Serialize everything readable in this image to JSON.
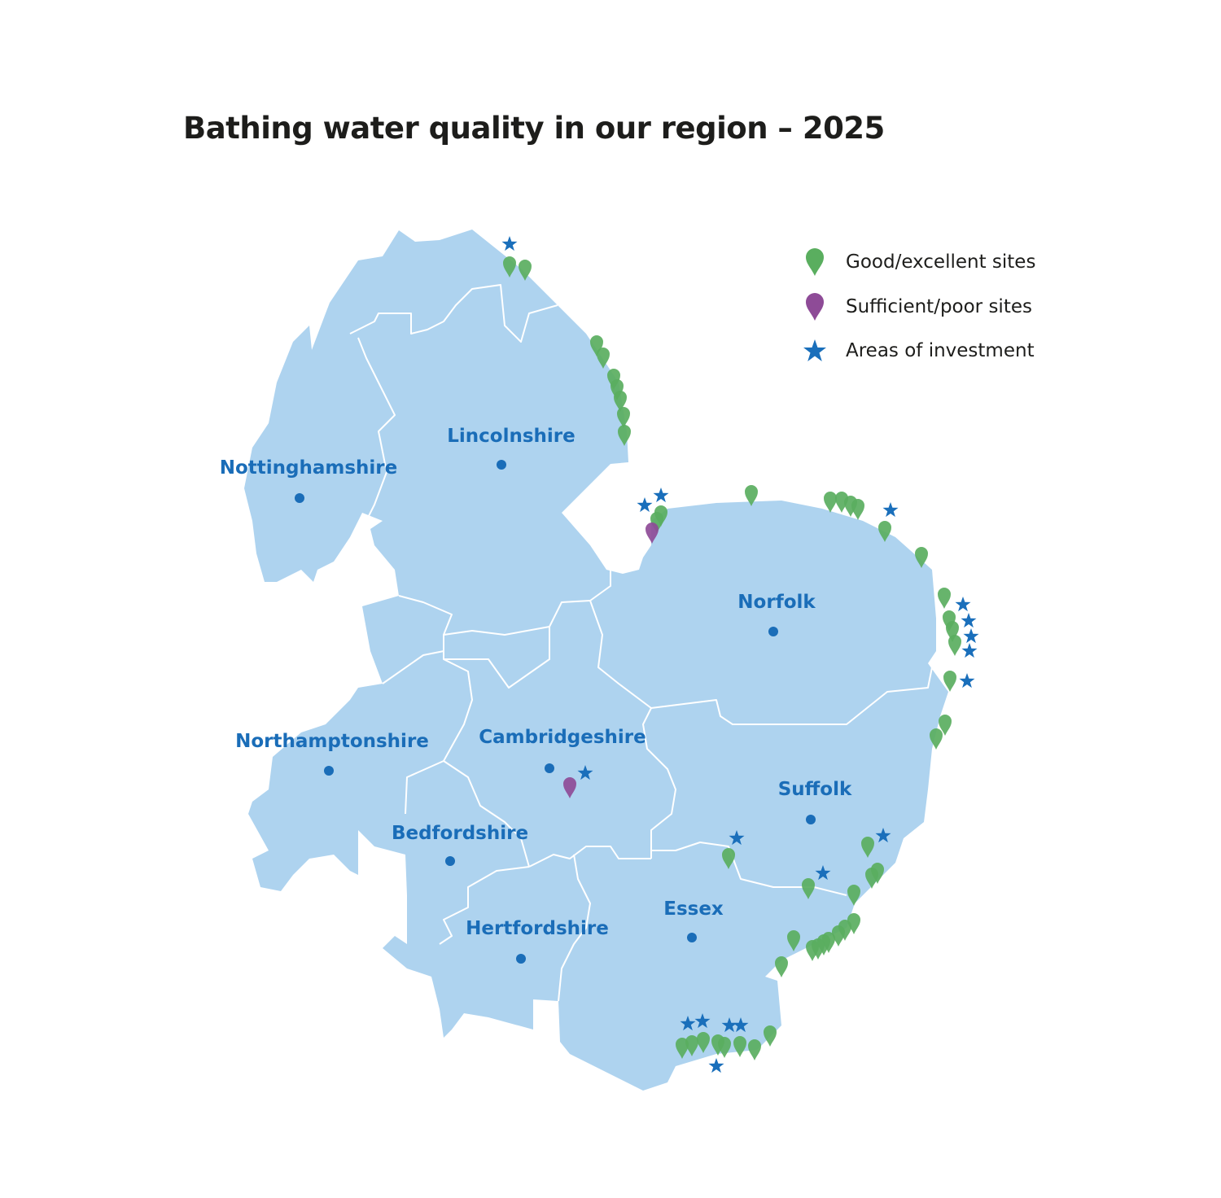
{
  "title": "Bathing water quality in our region – 2025",
  "colors": {
    "land": "#aed3ef",
    "border": "#ffffff",
    "label": "#1a6db8",
    "good_pin": "#5aae5f",
    "poor_pin": "#8e4b97",
    "investment_star": "#1a6fbb"
  },
  "legend": [
    {
      "label": "Good/excellent sites",
      "icon": "green-pin-icon"
    },
    {
      "label": "Sufficient/poor sites",
      "icon": "purple-pin-icon"
    },
    {
      "label": "Areas of investment",
      "icon": "blue-star-icon"
    }
  ],
  "counties": [
    {
      "name": "Lincolnshire"
    },
    {
      "name": "Nottinghamshire"
    },
    {
      "name": "Norfolk"
    },
    {
      "name": "Northamptonshire"
    },
    {
      "name": "Cambridgeshire"
    },
    {
      "name": "Suffolk"
    },
    {
      "name": "Bedfordshire"
    },
    {
      "name": "Essex"
    },
    {
      "name": "Hertfordshire"
    }
  ]
}
